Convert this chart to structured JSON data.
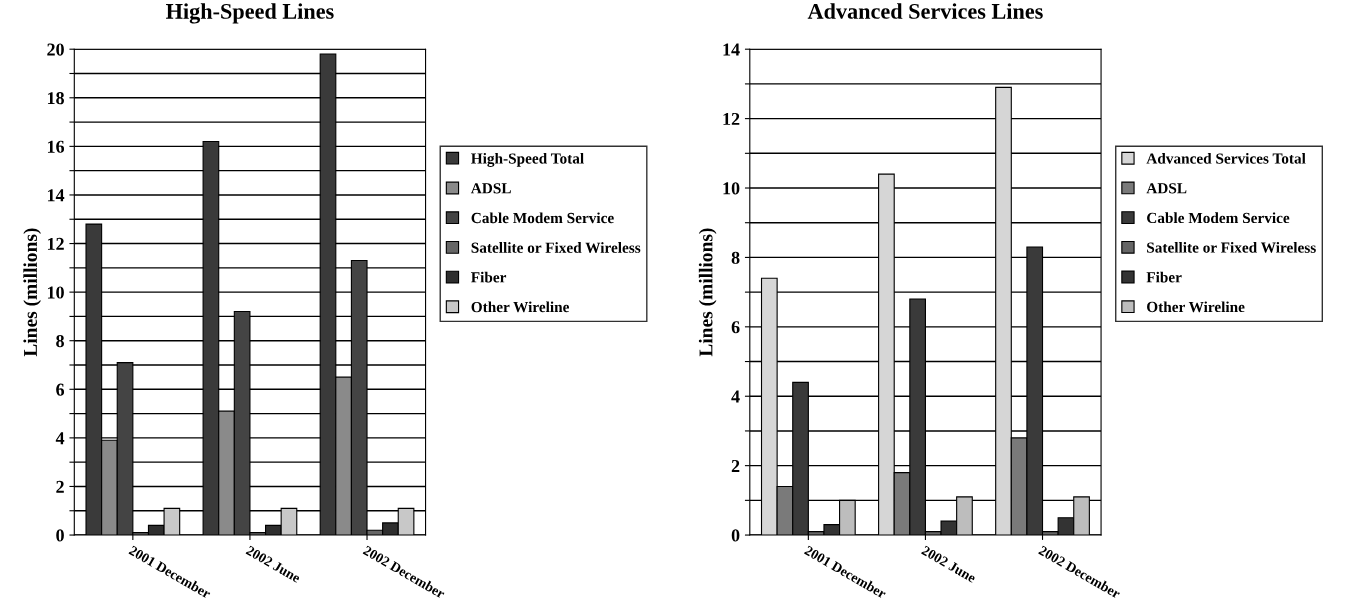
{
  "chart_data": [
    {
      "type": "bar",
      "title": "High-Speed Lines",
      "ylabel": "Lines (millions)",
      "categories": [
        "2001 December",
        "2002 June",
        "2002 December"
      ],
      "series": [
        {
          "name": "High-Speed Total",
          "color": "#3a3a3a",
          "values": [
            12.8,
            16.2,
            19.8
          ]
        },
        {
          "name": "ADSL",
          "color": "#8a8a8a",
          "values": [
            3.9,
            5.1,
            6.5
          ]
        },
        {
          "name": "Cable Modem Service",
          "color": "#444444",
          "values": [
            7.1,
            9.2,
            11.3
          ]
        },
        {
          "name": "Satellite or Fixed Wireless",
          "color": "#666666",
          "values": [
            0.1,
            0.1,
            0.2
          ]
        },
        {
          "name": "Fiber",
          "color": "#2e2e2e",
          "values": [
            0.4,
            0.4,
            0.5
          ]
        },
        {
          "name": "Other Wireline",
          "color": "#c8c8c8",
          "values": [
            1.1,
            1.1,
            1.1
          ]
        }
      ],
      "ylim": [
        0,
        20
      ],
      "yticks": [
        0,
        {
          "value": 1,
          "label": null
        },
        2,
        {
          "value": 3,
          "label": null
        },
        4,
        {
          "value": 5,
          "label": null
        },
        6,
        {
          "value": 7,
          "label": null
        },
        8,
        {
          "value": 9,
          "label": null
        },
        10,
        {
          "value": 11,
          "label": null
        },
        12,
        {
          "value": 13,
          "label": null
        },
        14,
        {
          "value": 15,
          "label": null
        },
        16,
        {
          "value": 17,
          "label": null
        },
        18,
        {
          "value": 19,
          "label": null
        },
        20
      ],
      "grid": "y",
      "legend": "right"
    },
    {
      "type": "bar",
      "title": "Advanced Services Lines",
      "ylabel": "Lines (millions)",
      "categories": [
        "2001 December",
        "2002 June",
        "2002 December"
      ],
      "series": [
        {
          "name": "Advanced Services Total",
          "color": "#d6d6d6",
          "values": [
            7.4,
            10.4,
            12.9
          ]
        },
        {
          "name": "ADSL",
          "color": "#7a7a7a",
          "values": [
            1.4,
            1.8,
            2.8
          ]
        },
        {
          "name": "Cable Modem Service",
          "color": "#3a3a3a",
          "values": [
            4.4,
            6.8,
            8.3
          ]
        },
        {
          "name": "Satellite or Fixed Wireless",
          "color": "#666666",
          "values": [
            0.1,
            0.1,
            0.1
          ]
        },
        {
          "name": "Fiber",
          "color": "#333333",
          "values": [
            0.3,
            0.4,
            0.5
          ]
        },
        {
          "name": "Other Wireline",
          "color": "#bdbdbd",
          "values": [
            1.0,
            1.1,
            1.1
          ]
        }
      ],
      "ylim": [
        0,
        14
      ],
      "yticks": [
        0,
        {
          "value": 1,
          "label": null
        },
        2,
        {
          "value": 3,
          "label": null
        },
        4,
        {
          "value": 5,
          "label": null
        },
        6,
        {
          "value": 7,
          "label": null
        },
        8,
        {
          "value": 9,
          "label": null
        },
        10,
        {
          "value": 11,
          "label": null
        },
        12,
        {
          "value": 13,
          "label": null
        },
        14
      ],
      "grid": "y",
      "legend": "right"
    }
  ]
}
